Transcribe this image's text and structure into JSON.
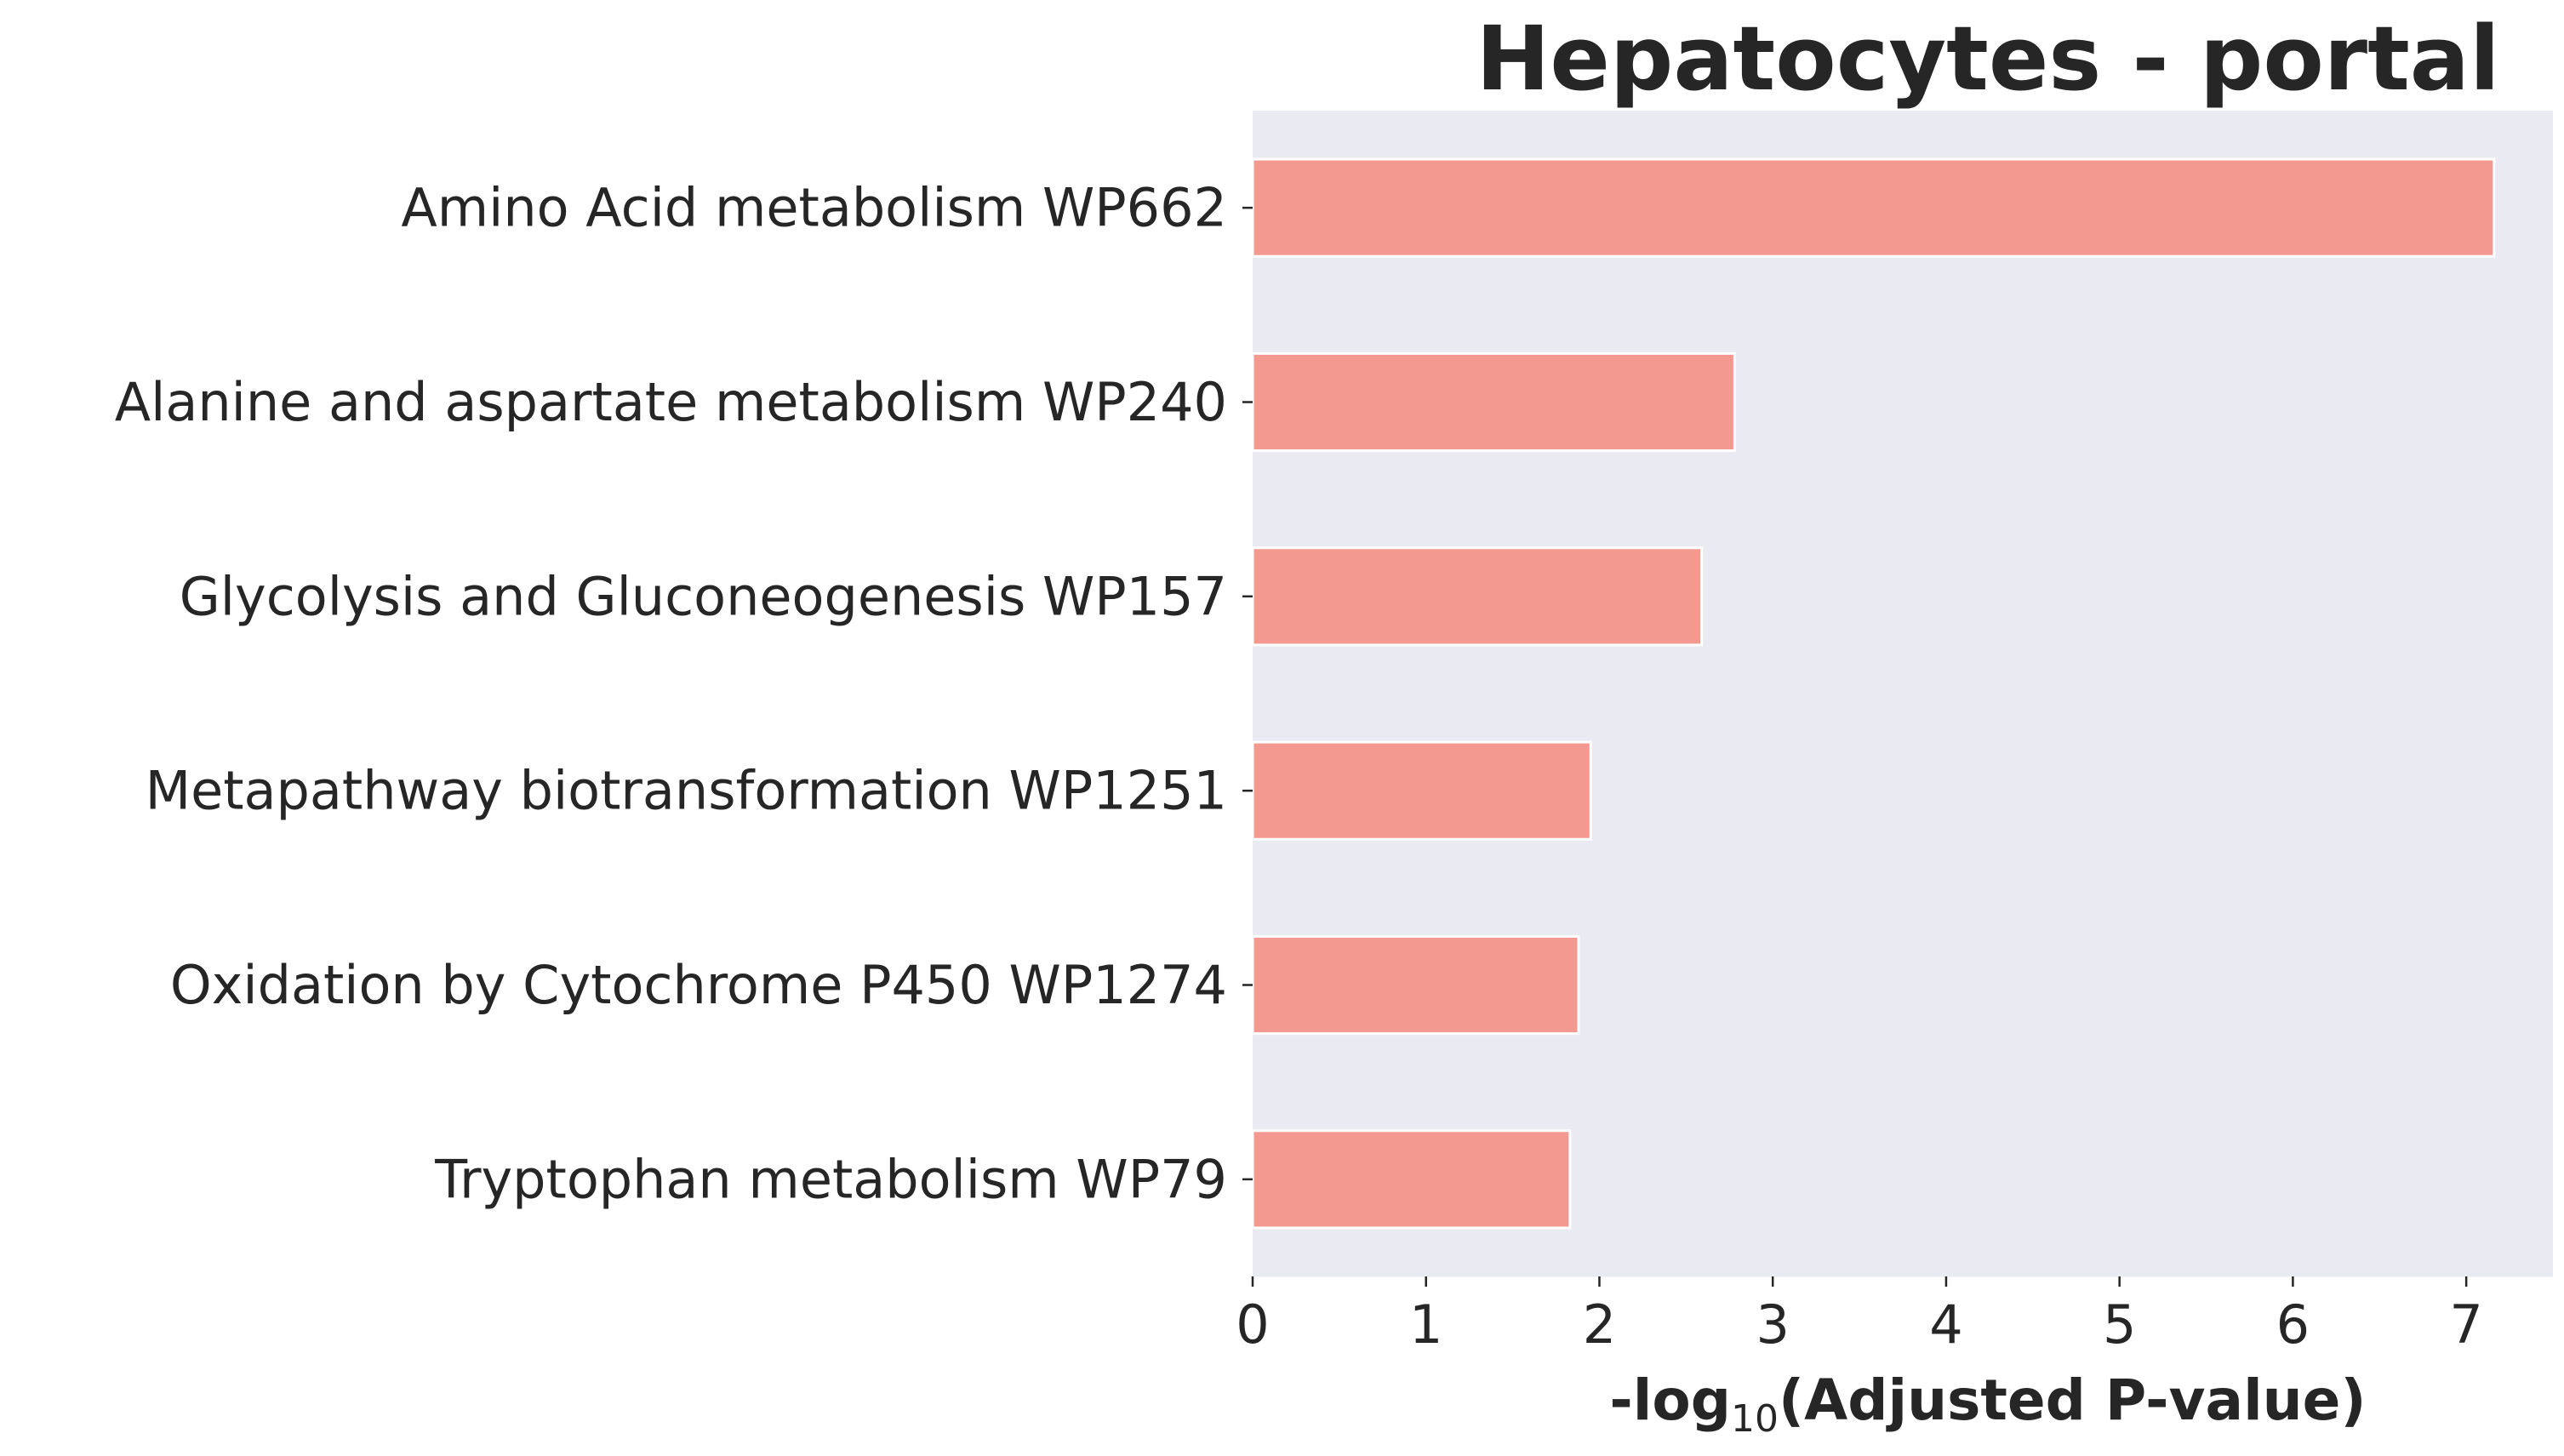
{
  "chart_data": {
    "type": "bar",
    "orientation": "horizontal",
    "title": "Hepatocytes - portal",
    "xlabel_prefix": "-log",
    "xlabel_sub": "10",
    "xlabel_suffix": "(Adjusted P-value)",
    "ylabel": "",
    "categories": [
      "Amino Acid metabolism WP662",
      "Alanine and aspartate metabolism WP240",
      "Glycolysis and Gluconeogenesis WP157",
      "Metapathway biotransformation WP1251",
      "Oxidation by Cytochrome P450 WP1274",
      "Tryptophan metabolism WP79"
    ],
    "values": [
      7.16,
      2.78,
      2.59,
      1.95,
      1.88,
      1.83
    ],
    "xlim": [
      0,
      7.5
    ],
    "xticks": [
      0,
      1,
      2,
      3,
      4,
      5,
      6,
      7
    ],
    "grid": false,
    "colors": {
      "bar": "#f4998f",
      "bar_edge": "#ffffff",
      "plot_bg": "#eaeaf2",
      "text": "#262626"
    }
  }
}
